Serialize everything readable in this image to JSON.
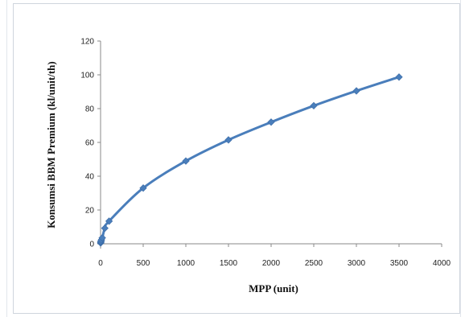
{
  "chart_data": {
    "type": "scatter",
    "title": "",
    "xlabel": "MPP (unit)",
    "ylabel": "Konsumsi BBM Premium  (kl/unit/th)",
    "xlim": [
      0,
      4000
    ],
    "ylim": [
      0,
      120
    ],
    "x_ticks": [
      0,
      500,
      1000,
      1500,
      2000,
      2500,
      3000,
      3500,
      4000
    ],
    "y_ticks": [
      0,
      20,
      40,
      60,
      80,
      100,
      120
    ],
    "grid": false,
    "legend": "none",
    "series": [
      {
        "color": "#4a7ebb",
        "marker": "diamond",
        "smoothed_line": true,
        "x": [
          1,
          3,
          5,
          10,
          20,
          50,
          100,
          500,
          1000,
          1500,
          2000,
          2500,
          3000,
          3500
        ],
        "y": [
          0.5,
          1,
          1.5,
          2.3,
          3.5,
          9.2,
          13.4,
          33,
          49,
          61.5,
          72,
          81.7,
          90.5,
          98.7
        ]
      }
    ]
  }
}
